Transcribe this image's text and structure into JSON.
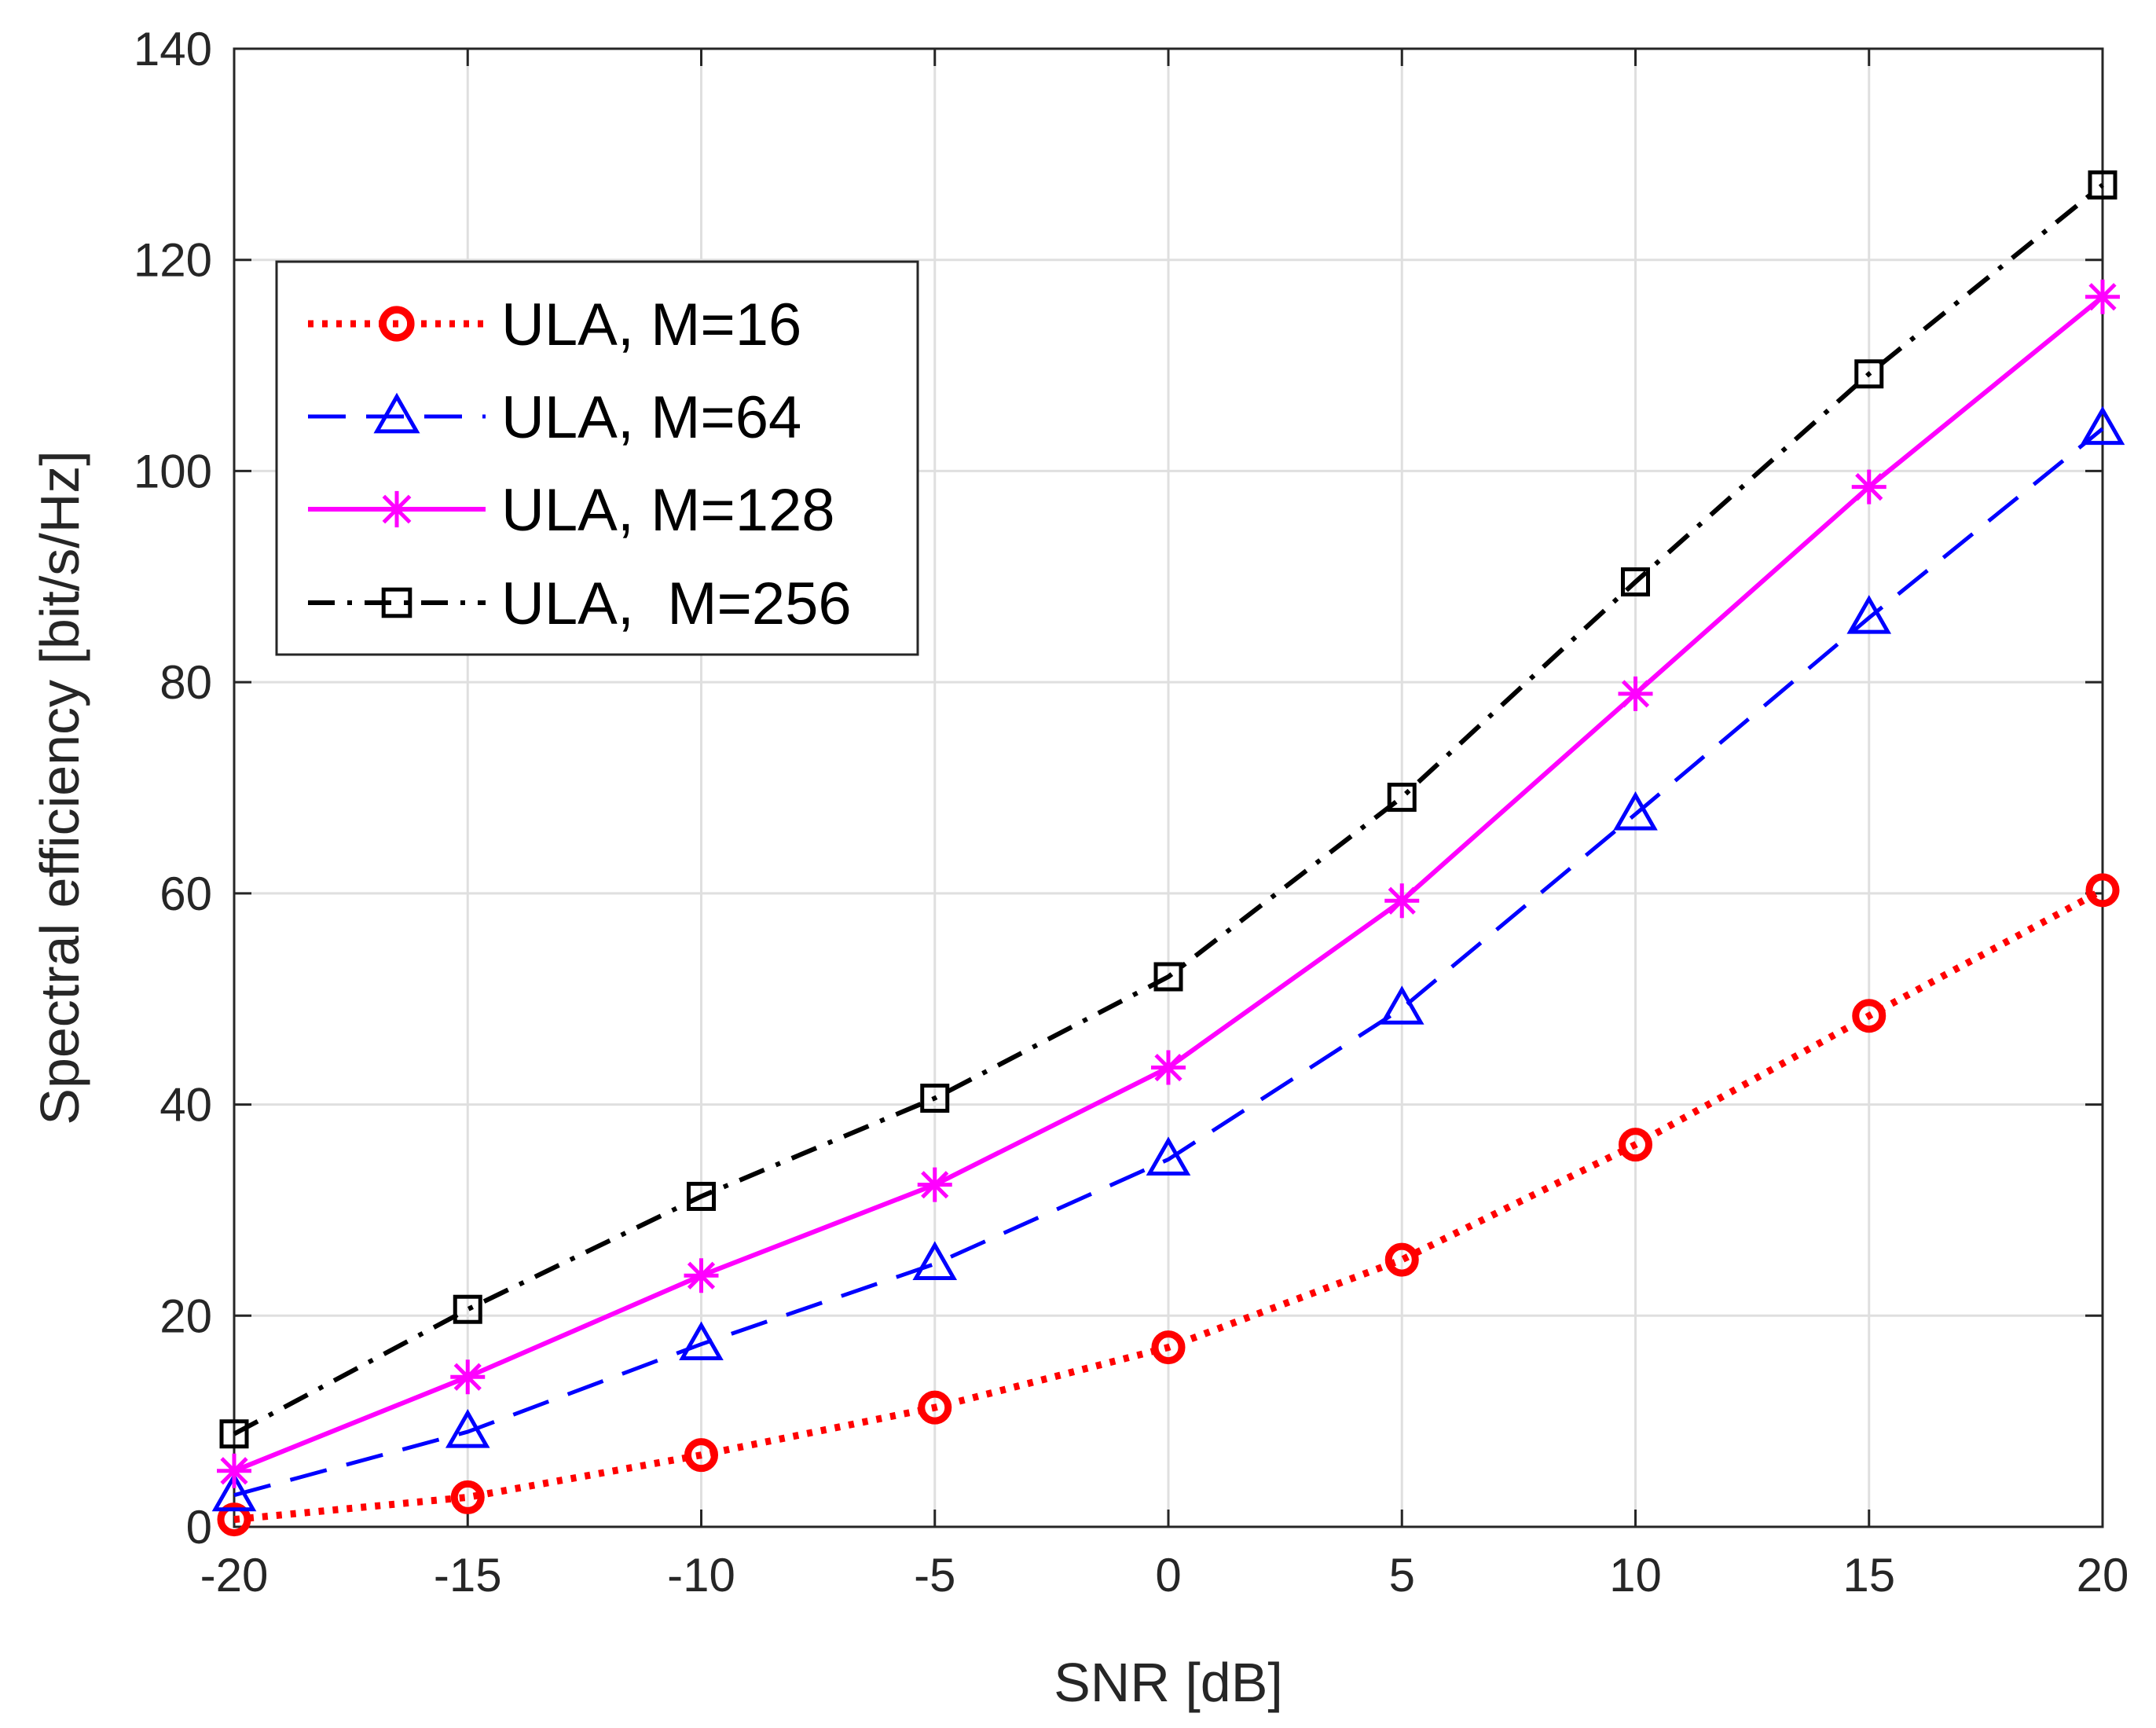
{
  "chart_data": {
    "type": "line",
    "title": "",
    "xlabel": "SNR [dB]",
    "ylabel": "Spectral efficiency [bit/s/Hz]",
    "xlim": [
      -20,
      20
    ],
    "ylim": [
      0,
      140
    ],
    "grid": true,
    "legend_position": "top-left",
    "x": [
      -20,
      -15,
      -10,
      -5,
      0,
      5,
      10,
      15,
      20
    ],
    "xticks": [
      "-20",
      "-15",
      "-10",
      "-5",
      "0",
      "5",
      "10",
      "15",
      "20"
    ],
    "yticks": [
      "0",
      "20",
      "40",
      "60",
      "80",
      "100",
      "120",
      "140"
    ],
    "series": [
      {
        "name": "ULA, M=16",
        "color": "#ff0000",
        "line_style": "dotted",
        "marker": "circle",
        "values": [
          0.7,
          2.8,
          6.8,
          11.3,
          17.0,
          25.3,
          36.2,
          48.4,
          60.3
        ]
      },
      {
        "name": "ULA, M=64",
        "color": "#0000ff",
        "line_style": "dashed",
        "marker": "triangle",
        "values": [
          3.0,
          9.0,
          17.3,
          24.9,
          34.8,
          49.1,
          67.5,
          86.1,
          104.0
        ]
      },
      {
        "name": "ULA, M=128",
        "color": "#ff00ff",
        "line_style": "solid",
        "marker": "asterisk",
        "values": [
          5.3,
          14.2,
          23.8,
          32.4,
          43.5,
          59.3,
          78.9,
          98.5,
          116.5
        ]
      },
      {
        "name": "ULA,  M=256",
        "color": "#000000",
        "line_style": "dash-dot",
        "marker": "square",
        "values": [
          8.8,
          20.6,
          31.3,
          40.6,
          52.1,
          69.1,
          89.5,
          109.2,
          127.1
        ]
      }
    ]
  }
}
